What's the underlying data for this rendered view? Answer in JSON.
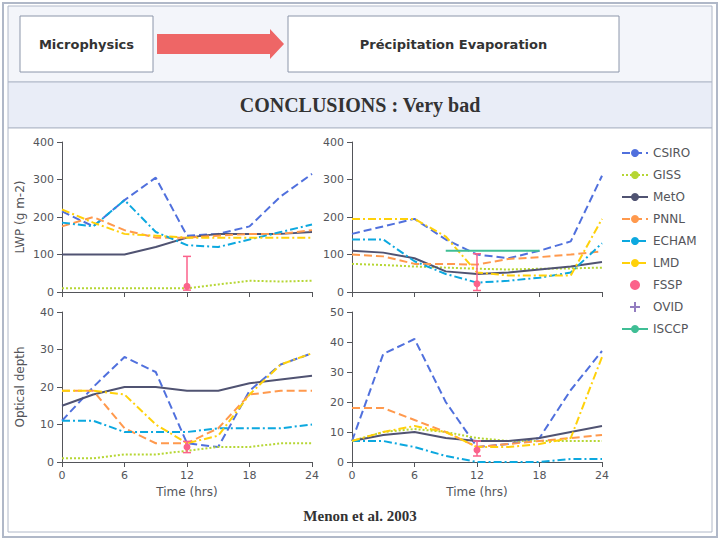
{
  "chart_data": [
    {
      "type": "line",
      "title": "CONCLUSIONS : Very bad",
      "annotations": [
        "Microphysics",
        "Précipitation Evaporation",
        "Menon et al. 2003"
      ],
      "ylabel": "LWP (g m-2)",
      "x": [
        0,
        3,
        6,
        9,
        12,
        15,
        18,
        21,
        24
      ],
      "xlim": [
        0,
        24
      ],
      "xticks": [
        0,
        6,
        12,
        18,
        24
      ],
      "ylim": [
        0,
        400
      ],
      "yticks": [
        0,
        100,
        200,
        300,
        400
      ],
      "grid": false,
      "tick_labels": "y",
      "series": [
        {
          "name": "CSIRO",
          "line_style": "dashed",
          "values": [
            215,
            175,
            245,
            305,
            150,
            155,
            175,
            255,
            315
          ]
        },
        {
          "name": "GISS",
          "line_style": "dotted",
          "values": [
            10,
            10,
            10,
            10,
            10,
            20,
            30,
            28,
            30
          ]
        },
        {
          "name": "MetO",
          "line_style": "solid",
          "values": [
            100,
            100,
            100,
            120,
            145,
            155,
            155,
            155,
            160
          ]
        },
        {
          "name": "PNNL",
          "line_style": "dashed",
          "values": [
            175,
            200,
            165,
            145,
            145,
            150,
            155,
            155,
            165
          ]
        },
        {
          "name": "ECHAM",
          "line_style": "dashdot",
          "values": [
            185,
            175,
            245,
            160,
            125,
            120,
            140,
            160,
            180
          ]
        },
        {
          "name": "LMD",
          "line_style": "dashdot",
          "values": [
            220,
            185,
            155,
            150,
            145,
            145,
            145,
            145,
            145
          ]
        },
        {
          "name": "FSSP",
          "type": "errorbar",
          "marker": "circle",
          "x": [
            12
          ],
          "values": [
            15
          ],
          "error_minus": [
            10
          ],
          "error_plus": [
            80
          ]
        }
      ]
    },
    {
      "type": "line",
      "x": [
        0,
        3,
        6,
        9,
        12,
        15,
        18,
        21,
        24
      ],
      "xlim": [
        0,
        24
      ],
      "xticks": [
        0,
        6,
        12,
        18,
        24
      ],
      "ylim": [
        0,
        400
      ],
      "yticks": [
        0,
        100,
        200,
        300,
        400
      ],
      "grid": false,
      "tick_labels": "y",
      "legend": "right",
      "series": [
        {
          "name": "CSIRO",
          "line_style": "dashed",
          "values": [
            155,
            175,
            195,
            140,
            100,
            90,
            110,
            135,
            310
          ]
        },
        {
          "name": "GISS",
          "line_style": "dotted",
          "values": [
            75,
            72,
            68,
            65,
            62,
            60,
            62,
            63,
            65
          ]
        },
        {
          "name": "MetO",
          "line_style": "solid",
          "values": [
            110,
            105,
            90,
            55,
            48,
            52,
            60,
            68,
            80
          ]
        },
        {
          "name": "PNNL",
          "line_style": "dashed",
          "values": [
            100,
            95,
            75,
            75,
            73,
            88,
            93,
            100,
            108
          ]
        },
        {
          "name": "ECHAM",
          "line_style": "dashdot",
          "values": [
            140,
            140,
            82,
            48,
            25,
            30,
            38,
            52,
            130
          ]
        },
        {
          "name": "LMD",
          "line_style": "dashdot",
          "values": [
            195,
            195,
            195,
            148,
            52,
            44,
            44,
            44,
            195
          ]
        },
        {
          "name": "FSSP",
          "type": "errorbar",
          "marker": "circle",
          "x": [
            12
          ],
          "values": [
            22
          ],
          "error_minus": [
            18
          ],
          "error_plus": [
            80
          ]
        },
        {
          "name": "OVID",
          "type": "scatter",
          "marker": "plus",
          "x": [],
          "values": []
        },
        {
          "name": "ISCCP",
          "line_style": "solid",
          "x": [
            9,
            18
          ],
          "values": [
            110,
            110
          ]
        }
      ]
    },
    {
      "type": "line",
      "xlabel": "Time (hrs)",
      "ylabel": "Optical depth",
      "x": [
        0,
        3,
        6,
        9,
        12,
        15,
        18,
        21,
        24
      ],
      "xlim": [
        0,
        24
      ],
      "xticks": [
        0,
        6,
        12,
        18,
        24
      ],
      "ylim": [
        0,
        40
      ],
      "yticks": [
        0,
        10,
        20,
        30,
        40
      ],
      "grid": false,
      "series": [
        {
          "name": "CSIRO",
          "line_style": "dashed",
          "values": [
            11,
            20,
            28,
            24,
            5,
            4,
            19,
            26,
            29
          ]
        },
        {
          "name": "GISS",
          "line_style": "dotted",
          "values": [
            1,
            1,
            2,
            2,
            3,
            4,
            4,
            5,
            5
          ]
        },
        {
          "name": "MetO",
          "line_style": "solid",
          "values": [
            15,
            18,
            20,
            20,
            19,
            19,
            21,
            22,
            23
          ]
        },
        {
          "name": "PNNL",
          "line_style": "dashed",
          "values": [
            19,
            19,
            9,
            5,
            5,
            9,
            18,
            19,
            19
          ]
        },
        {
          "name": "ECHAM",
          "line_style": "dashdot",
          "values": [
            11,
            11,
            8,
            8,
            8,
            9,
            9,
            9,
            10
          ]
        },
        {
          "name": "LMD",
          "line_style": "dashdot",
          "values": [
            19,
            19,
            18,
            10,
            5,
            7,
            18,
            26,
            29
          ]
        },
        {
          "name": "FSSP",
          "type": "errorbar",
          "marker": "circle",
          "x": [
            12
          ],
          "values": [
            4
          ],
          "error_minus": [
            1.5
          ],
          "error_plus": [
            1.5
          ]
        }
      ]
    },
    {
      "type": "line",
      "xlabel": "Time (hrs)",
      "x": [
        0,
        3,
        6,
        9,
        12,
        15,
        18,
        21,
        24
      ],
      "xlim": [
        0,
        24
      ],
      "xticks": [
        0,
        6,
        12,
        18,
        24
      ],
      "ylim": [
        0,
        50
      ],
      "yticks": [
        0,
        10,
        20,
        30,
        40,
        50
      ],
      "grid": false,
      "series": [
        {
          "name": "CSIRO",
          "line_style": "dashed",
          "values": [
            7,
            36,
            41,
            20,
            5,
            6,
            8,
            24,
            37
          ]
        },
        {
          "name": "GISS",
          "line_style": "dotted",
          "values": [
            7,
            10,
            11,
            10,
            8,
            7,
            7,
            7,
            7
          ]
        },
        {
          "name": "MetO",
          "line_style": "solid",
          "values": [
            7,
            9,
            10,
            8,
            7,
            7,
            8,
            10,
            12
          ]
        },
        {
          "name": "PNNL",
          "line_style": "dashed",
          "values": [
            18,
            18,
            14,
            10,
            5,
            6,
            7,
            8,
            9
          ]
        },
        {
          "name": "ECHAM",
          "line_style": "dashdot",
          "values": [
            7,
            7,
            5,
            2,
            0,
            0,
            0,
            1,
            1
          ]
        },
        {
          "name": "LMD",
          "line_style": "dashdot",
          "values": [
            7,
            10,
            12,
            10,
            5,
            5,
            6,
            8,
            35
          ]
        },
        {
          "name": "FSSP",
          "type": "errorbar",
          "marker": "circle",
          "x": [
            12
          ],
          "values": [
            4
          ],
          "error_minus": [
            2
          ],
          "error_plus": [
            3
          ]
        }
      ]
    }
  ]
}
